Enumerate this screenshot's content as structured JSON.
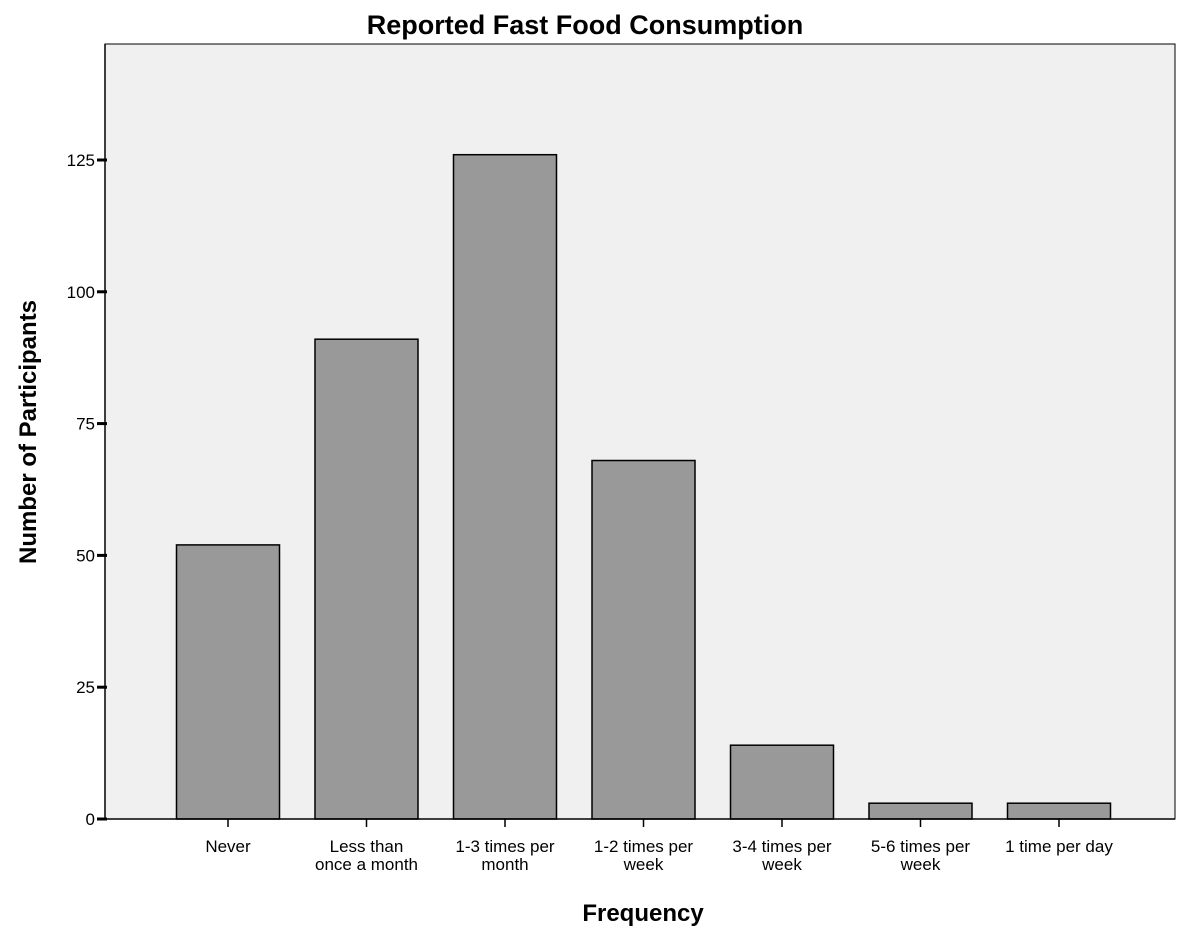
{
  "chart_data": {
    "type": "bar",
    "title": "Reported Fast Food Consumption",
    "xlabel": "Frequency",
    "ylabel": "Number of Participants",
    "categories": [
      "Never",
      "Less than once a month",
      "1-3 times per month",
      "1-2 times per week",
      "3-4 times per week",
      "5-6 times per week",
      "1 time per day"
    ],
    "category_lines": [
      [
        "Never"
      ],
      [
        "Less than",
        "once a month"
      ],
      [
        "1-3 times per",
        "month"
      ],
      [
        "1-2 times per",
        "week"
      ],
      [
        "3-4 times per",
        "week"
      ],
      [
        "5-6 times per",
        "week"
      ],
      [
        "1 time per day"
      ]
    ],
    "values": [
      52,
      91,
      126,
      68,
      14,
      3,
      3
    ],
    "ylim": [
      0,
      147
    ],
    "yticks": [
      0,
      25,
      50,
      75,
      100,
      125
    ],
    "grid": false,
    "legend": "none",
    "colors": {
      "bar_fill": "#999999",
      "bar_stroke": "#000000",
      "plot_background": "#f0f0f0"
    }
  }
}
